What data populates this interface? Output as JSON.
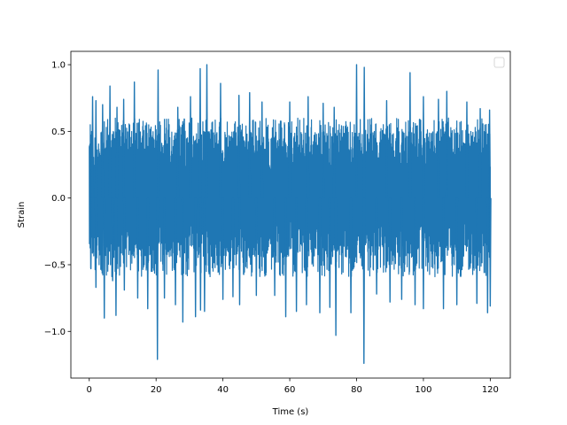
{
  "chart_data": {
    "type": "line",
    "title": "",
    "xlabel": "Time (s)",
    "ylabel": "Strain",
    "xlim": [
      -5.5,
      126
    ],
    "ylim": [
      -1.35,
      1.1
    ],
    "xticks": [
      0,
      20,
      40,
      60,
      80,
      100,
      120
    ],
    "xtick_labels": [
      "0",
      "20",
      "40",
      "60",
      "80",
      "100",
      "120"
    ],
    "yticks": [
      -1.0,
      -0.5,
      0.0,
      0.5,
      1.0
    ],
    "ytick_labels": [
      "−1.0",
      "−0.5",
      "0.0",
      "0.5",
      "1.0"
    ],
    "grid": false,
    "legend": {
      "placement": "top-right",
      "entries": []
    },
    "series": [
      {
        "color": "#1f77b4",
        "x_range": [
          0,
          120
        ],
        "typical_band": [
          -0.45,
          0.5
        ],
        "peaks": [
          {
            "x": 0.5,
            "y": 0.47
          },
          {
            "x": 1.0,
            "y": 0.76
          },
          {
            "x": 2.0,
            "y": 0.73
          },
          {
            "x": 4.0,
            "y": 0.7
          },
          {
            "x": 6.2,
            "y": 0.84
          },
          {
            "x": 8.3,
            "y": 0.68
          },
          {
            "x": 10.3,
            "y": 0.74
          },
          {
            "x": 13.5,
            "y": 0.87
          },
          {
            "x": 20.6,
            "y": 0.96
          },
          {
            "x": 26.5,
            "y": 0.68
          },
          {
            "x": 30.3,
            "y": 0.76
          },
          {
            "x": 33.2,
            "y": 0.97
          },
          {
            "x": 35.2,
            "y": 1.0
          },
          {
            "x": 39.3,
            "y": 0.86
          },
          {
            "x": 44.8,
            "y": 0.77
          },
          {
            "x": 48.0,
            "y": 0.79
          },
          {
            "x": 51.7,
            "y": 0.72
          },
          {
            "x": 60.0,
            "y": 0.72
          },
          {
            "x": 65.5,
            "y": 0.76
          },
          {
            "x": 70.0,
            "y": 0.71
          },
          {
            "x": 73.3,
            "y": 0.68
          },
          {
            "x": 80.0,
            "y": 1.0
          },
          {
            "x": 82.3,
            "y": 0.98
          },
          {
            "x": 89.0,
            "y": 0.73
          },
          {
            "x": 96.0,
            "y": 0.94
          },
          {
            "x": 100.0,
            "y": 0.76
          },
          {
            "x": 104.5,
            "y": 0.74
          },
          {
            "x": 107.0,
            "y": 0.8
          },
          {
            "x": 113.0,
            "y": 0.72
          },
          {
            "x": 117.0,
            "y": 0.67
          },
          {
            "x": 119.8,
            "y": 0.66
          }
        ],
        "troughs": [
          {
            "x": 0.5,
            "y": -0.53
          },
          {
            "x": 2.0,
            "y": -0.67
          },
          {
            "x": 4.5,
            "y": -0.9
          },
          {
            "x": 7.0,
            "y": -0.62
          },
          {
            "x": 8.0,
            "y": -0.88
          },
          {
            "x": 10.5,
            "y": -0.69
          },
          {
            "x": 14.5,
            "y": -0.75
          },
          {
            "x": 17.5,
            "y": -0.83
          },
          {
            "x": 20.4,
            "y": -1.21
          },
          {
            "x": 22.5,
            "y": -0.75
          },
          {
            "x": 25.8,
            "y": -0.8
          },
          {
            "x": 28.0,
            "y": -0.93
          },
          {
            "x": 31.8,
            "y": -0.89
          },
          {
            "x": 33.3,
            "y": -0.84
          },
          {
            "x": 34.5,
            "y": -0.85
          },
          {
            "x": 40.0,
            "y": -0.76
          },
          {
            "x": 43.0,
            "y": -0.74
          },
          {
            "x": 45.0,
            "y": -0.8
          },
          {
            "x": 50.0,
            "y": -0.73
          },
          {
            "x": 55.5,
            "y": -0.73
          },
          {
            "x": 58.8,
            "y": -0.89
          },
          {
            "x": 62.0,
            "y": -0.85
          },
          {
            "x": 65.0,
            "y": -0.8
          },
          {
            "x": 69.0,
            "y": -0.86
          },
          {
            "x": 72.0,
            "y": -0.82
          },
          {
            "x": 73.8,
            "y": -1.03
          },
          {
            "x": 78.3,
            "y": -0.86
          },
          {
            "x": 82.2,
            "y": -1.24
          },
          {
            "x": 86.0,
            "y": -0.72
          },
          {
            "x": 90.0,
            "y": -0.78
          },
          {
            "x": 93.5,
            "y": -0.76
          },
          {
            "x": 97.5,
            "y": -0.8
          },
          {
            "x": 100.0,
            "y": -0.83
          },
          {
            "x": 106.0,
            "y": -0.83
          },
          {
            "x": 110.0,
            "y": -0.8
          },
          {
            "x": 116.0,
            "y": -0.79
          },
          {
            "x": 119.2,
            "y": -0.86
          },
          {
            "x": 120.0,
            "y": -0.81
          }
        ]
      }
    ]
  }
}
